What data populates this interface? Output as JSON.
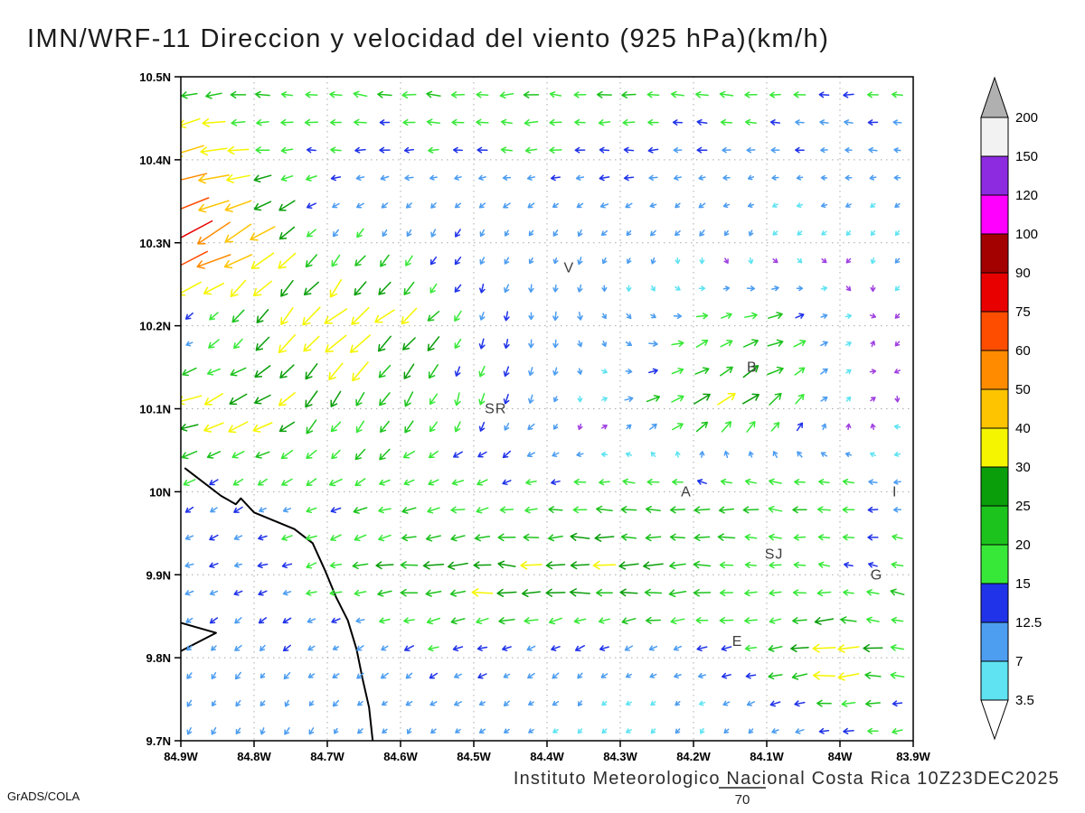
{
  "title": "IMN/WRF-11 Direccion y velocidad del viento (925 hPa)(km/h)",
  "footer": "Instituto Meteorologico Nacional Costa Rica 10Z23DEC2025",
  "credit": "GrADS/COLA",
  "reference_vector": {
    "label": "70"
  },
  "chart_data": {
    "type": "vector-field",
    "title": "IMN/WRF-11 Direccion y velocidad del viento (925 hPa)(km/h)",
    "units": "km/h",
    "level": "925 hPa",
    "valid_time": "10Z23DEC2025",
    "x_axis": {
      "ticks": [
        "84.9W",
        "84.8W",
        "84.7W",
        "84.6W",
        "84.5W",
        "84.4W",
        "84.3W",
        "84.2W",
        "84.1W",
        "84W",
        "83.9W"
      ],
      "range_deg": [
        -84.9,
        -83.9
      ],
      "grid": "dotted"
    },
    "y_axis": {
      "ticks": [
        "10.5N",
        "10.4N",
        "10.3N",
        "10.2N",
        "10.1N",
        "10N",
        "9.9N",
        "9.8N",
        "9.7N"
      ],
      "range_deg": [
        9.7,
        10.5
      ],
      "grid": "dotted"
    },
    "colorbar": {
      "levels": [
        3.5,
        7,
        12.5,
        15,
        20,
        25,
        30,
        40,
        50,
        60,
        75,
        90,
        100,
        120,
        150,
        200
      ],
      "colors": [
        "#5fe3f2",
        "#4d9df0",
        "#2033e8",
        "#38e838",
        "#1dc31d",
        "#0a9e0a",
        "#f5f500",
        "#ffc400",
        "#ff8c00",
        "#ff4d00",
        "#e80000",
        "#a30000",
        "#ff00ff",
        "#8c2be0",
        "#f2f2f2"
      ],
      "under_color": "#ffffff",
      "over_color": "#b0b0b0",
      "calm_arrow_color": "#a040e0"
    },
    "stations": [
      {
        "label": "V",
        "lon": -84.37,
        "lat": 10.27
      },
      {
        "label": "B",
        "lon": -84.12,
        "lat": 10.15
      },
      {
        "label": "SR",
        "lon": -84.47,
        "lat": 10.1
      },
      {
        "label": "A",
        "lon": -84.21,
        "lat": 10.0
      },
      {
        "label": "I",
        "lon": -83.925,
        "lat": 10.0
      },
      {
        "label": "SJ",
        "lon": -84.09,
        "lat": 9.925
      },
      {
        "label": "G",
        "lon": -83.95,
        "lat": 9.9
      },
      {
        "label": "E",
        "lon": -84.14,
        "lat": 9.82
      }
    ],
    "coastlines": [
      [
        [
          -84.894,
          10.028
        ],
        [
          -84.845,
          9.995
        ],
        [
          -84.825,
          9.985
        ],
        [
          -84.818,
          9.992
        ],
        [
          -84.8,
          9.975
        ],
        [
          -84.745,
          9.955
        ],
        [
          -84.72,
          9.938
        ],
        [
          -84.703,
          9.905
        ],
        [
          -84.688,
          9.873
        ],
        [
          -84.672,
          9.845
        ],
        [
          -84.66,
          9.81
        ],
        [
          -84.652,
          9.775
        ],
        [
          -84.643,
          9.74
        ],
        [
          -84.638,
          9.7
        ]
      ],
      [
        [
          -84.9,
          9.842
        ],
        [
          -84.852,
          9.83
        ],
        [
          -84.9,
          9.808
        ]
      ]
    ],
    "wind_grid": {
      "units": "km/h",
      "lons": [
        -84.9,
        -84.8,
        -84.7,
        -84.6,
        -84.5,
        -84.4,
        -84.3,
        -84.2,
        -84.1,
        -84.0,
        -83.9
      ],
      "lats": [
        9.7,
        9.8,
        9.9,
        10.0,
        10.1,
        10.2,
        10.3,
        10.4,
        10.5
      ],
      "u": [
        [
          -3,
          -4,
          -5,
          -5,
          -6,
          -4,
          -3,
          -3,
          -6,
          -10,
          -15
        ],
        [
          -8,
          -8,
          -8,
          -10,
          -12,
          -10,
          -8,
          -10,
          -20,
          -38,
          -12
        ],
        [
          -10,
          -12,
          -15,
          -25,
          -30,
          -32,
          -30,
          -28,
          -15,
          -12,
          -18
        ],
        [
          -12,
          -10,
          -15,
          -18,
          -15,
          -15,
          -18,
          -20,
          -22,
          -20,
          -8
        ],
        [
          -35,
          -30,
          -15,
          -8,
          -5,
          -5,
          10,
          25,
          20,
          5,
          -3
        ],
        [
          -3,
          -12,
          -30,
          -25,
          -5,
          0,
          5,
          15,
          25,
          5,
          -3
        ],
        [
          -70,
          -35,
          -10,
          -6,
          -5,
          -4,
          -6,
          -4,
          -3,
          -3,
          -4
        ],
        [
          -55,
          -20,
          -12,
          -12,
          -12,
          -14,
          -14,
          -12,
          -10,
          -10,
          -10
        ],
        [
          -18,
          -18,
          -20,
          -20,
          -22,
          -20,
          -20,
          -18,
          -18,
          -16,
          -15
        ]
      ],
      "v": [
        [
          -8,
          -8,
          -8,
          -6,
          -6,
          -5,
          -4,
          -4,
          -4,
          -2,
          -2
        ],
        [
          -8,
          -8,
          -6,
          -6,
          -4,
          -6,
          -6,
          -4,
          -4,
          -2,
          4
        ],
        [
          -4,
          -4,
          -4,
          -2,
          0,
          0,
          0,
          0,
          -2,
          2,
          4
        ],
        [
          -8,
          -6,
          -8,
          -6,
          -4,
          -2,
          0,
          0,
          2,
          2,
          0
        ],
        [
          -10,
          -15,
          -20,
          -20,
          -15,
          -10,
          5,
          15,
          18,
          5,
          -3
        ],
        [
          -2,
          -18,
          -30,
          -22,
          -12,
          -12,
          -8,
          5,
          8,
          2,
          -2
        ],
        [
          -35,
          -25,
          -12,
          -12,
          -10,
          -8,
          -8,
          -8,
          -6,
          -4,
          -6
        ],
        [
          -10,
          -2,
          0,
          0,
          0,
          0,
          0,
          0,
          0,
          0,
          0
        ],
        [
          0,
          1,
          2,
          1,
          0,
          0,
          1,
          2,
          1,
          0,
          0
        ]
      ]
    },
    "reference_vector_kmh": 70
  }
}
